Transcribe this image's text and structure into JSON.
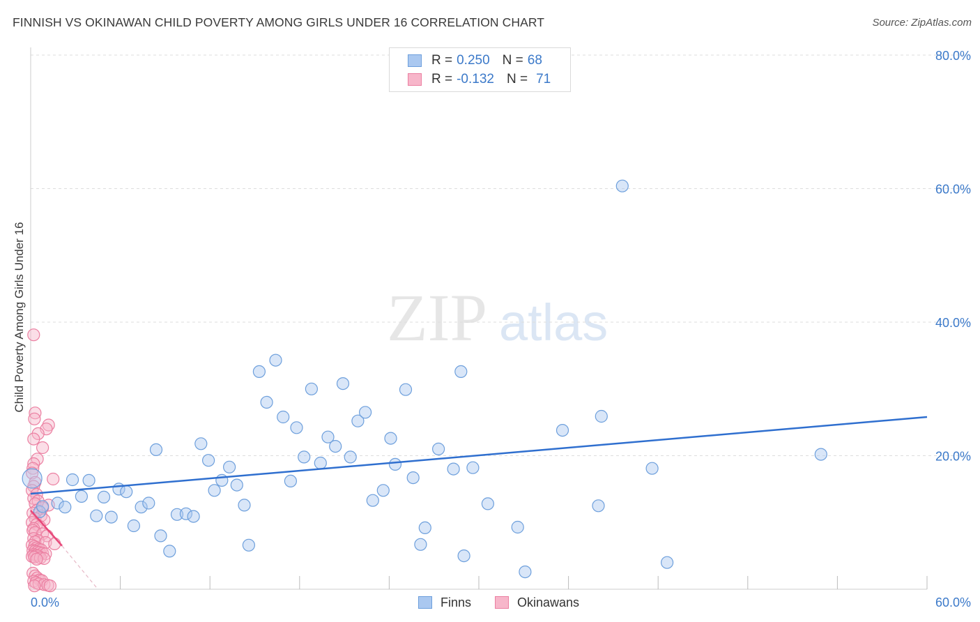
{
  "header": {
    "title": "FINNISH VS OKINAWAN CHILD POVERTY AMONG GIRLS UNDER 16 CORRELATION CHART",
    "source": "Source: ZipAtlas.com"
  },
  "watermark": {
    "zip": "ZIP",
    "atlas": "atlas"
  },
  "legend": {
    "finns": {
      "r_label": "R = ",
      "r_value": "0.250",
      "n_label": "N = ",
      "n_value": "68"
    },
    "okinawans": {
      "r_label": "R = ",
      "r_value": "-0.132",
      "n_label": "N = ",
      "n_value": "71"
    }
  },
  "colors": {
    "finns_fill": "#aac8f0",
    "finns_stroke": "#6d9fdc",
    "finns_line": "#2f6fcf",
    "okinawans_fill": "#f7b6ca",
    "okinawans_stroke": "#eb7fa1",
    "okinawans_line": "#e8497a",
    "tick_label": "#3b79c9",
    "grid": "#dddddd"
  },
  "chart_data": {
    "type": "scatter",
    "title": "FINNISH VS OKINAWAN CHILD POVERTY AMONG GIRLS UNDER 16 CORRELATION CHART",
    "xlabel": "",
    "ylabel": "Child Poverty Among Girls Under 16",
    "xlim": [
      0,
      60
    ],
    "ylim": [
      0,
      80
    ],
    "x_tick_labels": [
      "0.0%",
      "60.0%"
    ],
    "y_ticks": [
      20,
      40,
      60,
      80
    ],
    "y_tick_labels": [
      "20.0%",
      "40.0%",
      "60.0%",
      "80.0%"
    ],
    "grid": true,
    "legend_position": "top-center",
    "series": [
      {
        "name": "Finns",
        "r": 0.25,
        "n": 68,
        "trend": {
          "x": [
            0,
            60
          ],
          "y": [
            14.3,
            25.8
          ]
        },
        "points": [
          [
            0.1,
            16.6
          ],
          [
            0.6,
            11.6
          ],
          [
            0.8,
            12.4
          ],
          [
            1.8,
            12.9
          ],
          [
            2.3,
            12.3
          ],
          [
            2.8,
            16.4
          ],
          [
            3.4,
            13.9
          ],
          [
            3.9,
            16.3
          ],
          [
            4.4,
            11.0
          ],
          [
            4.9,
            13.8
          ],
          [
            5.4,
            10.8
          ],
          [
            5.9,
            15.0
          ],
          [
            6.4,
            14.6
          ],
          [
            6.9,
            9.5
          ],
          [
            7.4,
            12.3
          ],
          [
            7.9,
            12.9
          ],
          [
            8.4,
            20.9
          ],
          [
            8.7,
            8.0
          ],
          [
            9.3,
            5.7
          ],
          [
            9.8,
            11.2
          ],
          [
            10.4,
            11.3
          ],
          [
            10.9,
            10.9
          ],
          [
            11.4,
            21.8
          ],
          [
            11.9,
            19.3
          ],
          [
            12.3,
            14.8
          ],
          [
            12.8,
            16.3
          ],
          [
            13.3,
            18.3
          ],
          [
            13.8,
            15.6
          ],
          [
            14.3,
            12.6
          ],
          [
            14.6,
            6.6
          ],
          [
            15.3,
            32.6
          ],
          [
            15.8,
            28.0
          ],
          [
            16.4,
            34.3
          ],
          [
            16.9,
            25.8
          ],
          [
            17.4,
            16.2
          ],
          [
            17.8,
            24.2
          ],
          [
            18.3,
            19.8
          ],
          [
            18.8,
            30.0
          ],
          [
            19.4,
            18.9
          ],
          [
            19.9,
            22.8
          ],
          [
            20.4,
            21.4
          ],
          [
            20.9,
            30.8
          ],
          [
            21.4,
            19.8
          ],
          [
            21.9,
            25.2
          ],
          [
            22.4,
            26.5
          ],
          [
            22.9,
            13.3
          ],
          [
            23.6,
            14.8
          ],
          [
            24.1,
            22.6
          ],
          [
            24.4,
            18.7
          ],
          [
            25.1,
            29.9
          ],
          [
            25.6,
            16.7
          ],
          [
            26.1,
            6.7
          ],
          [
            26.4,
            9.2
          ],
          [
            27.3,
            21.0
          ],
          [
            28.3,
            18.0
          ],
          [
            28.8,
            32.6
          ],
          [
            29.0,
            5.0
          ],
          [
            29.6,
            18.2
          ],
          [
            30.6,
            12.8
          ],
          [
            32.6,
            9.3
          ],
          [
            33.1,
            2.6
          ],
          [
            35.6,
            23.8
          ],
          [
            38.0,
            12.5
          ],
          [
            38.2,
            25.9
          ],
          [
            39.6,
            60.4
          ],
          [
            41.6,
            18.1
          ],
          [
            42.6,
            4.0
          ],
          [
            52.9,
            20.2
          ]
        ]
      },
      {
        "name": "Okinawans",
        "r": -0.132,
        "n": 71,
        "trend": {
          "x": [
            0,
            2.1
          ],
          "y": [
            11.8,
            6.5
          ]
        },
        "trend_extension": {
          "x": [
            2.1,
            4.5
          ],
          "y": [
            6.5,
            0
          ]
        },
        "points": [
          [
            0.2,
            38.1
          ],
          [
            0.3,
            26.4
          ],
          [
            0.25,
            25.5
          ],
          [
            1.2,
            24.6
          ],
          [
            1.05,
            24.0
          ],
          [
            0.5,
            23.3
          ],
          [
            0.2,
            22.5
          ],
          [
            0.8,
            21.2
          ],
          [
            0.45,
            19.5
          ],
          [
            0.2,
            18.8
          ],
          [
            0.15,
            18.1
          ],
          [
            0.1,
            17.4
          ],
          [
            1.5,
            16.5
          ],
          [
            0.3,
            16.0
          ],
          [
            0.2,
            15.4
          ],
          [
            0.1,
            14.8
          ],
          [
            0.4,
            14.2
          ],
          [
            0.2,
            13.6
          ],
          [
            0.5,
            13.2
          ],
          [
            0.3,
            12.8
          ],
          [
            1.2,
            12.6
          ],
          [
            0.8,
            12.2
          ],
          [
            0.4,
            11.8
          ],
          [
            0.15,
            11.4
          ],
          [
            0.7,
            11.0
          ],
          [
            0.3,
            10.6
          ],
          [
            0.9,
            10.4
          ],
          [
            0.1,
            10.0
          ],
          [
            0.4,
            9.7
          ],
          [
            0.6,
            9.4
          ],
          [
            0.2,
            9.1
          ],
          [
            0.15,
            8.8
          ],
          [
            0.3,
            8.5
          ],
          [
            0.8,
            8.3
          ],
          [
            1.1,
            8.0
          ],
          [
            0.2,
            7.6
          ],
          [
            0.5,
            7.3
          ],
          [
            0.3,
            7.1
          ],
          [
            1.0,
            7.0
          ],
          [
            1.6,
            6.8
          ],
          [
            0.1,
            6.6
          ],
          [
            0.25,
            6.4
          ],
          [
            0.4,
            6.2
          ],
          [
            0.55,
            6.0
          ],
          [
            0.7,
            5.9
          ],
          [
            0.15,
            5.8
          ],
          [
            0.3,
            5.7
          ],
          [
            0.45,
            5.6
          ],
          [
            0.6,
            5.5
          ],
          [
            0.8,
            5.4
          ],
          [
            1.0,
            5.3
          ],
          [
            0.2,
            5.2
          ],
          [
            0.35,
            5.1
          ],
          [
            0.5,
            5.0
          ],
          [
            0.1,
            4.9
          ],
          [
            0.25,
            4.8
          ],
          [
            0.65,
            4.7
          ],
          [
            0.9,
            4.6
          ],
          [
            0.4,
            4.5
          ],
          [
            0.15,
            2.4
          ],
          [
            0.3,
            2.0
          ],
          [
            0.45,
            1.7
          ],
          [
            0.6,
            1.4
          ],
          [
            0.75,
            1.3
          ],
          [
            0.2,
            1.2
          ],
          [
            0.35,
            1.0
          ],
          [
            0.55,
            0.8
          ],
          [
            0.9,
            0.7
          ],
          [
            1.15,
            0.6
          ],
          [
            1.3,
            0.5
          ],
          [
            0.25,
            0.5
          ]
        ]
      }
    ]
  }
}
